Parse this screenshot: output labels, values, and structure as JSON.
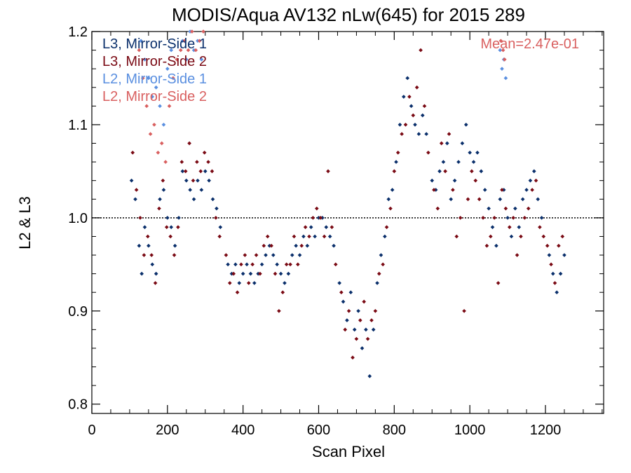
{
  "chart_data": {
    "type": "scatter",
    "title": "MODIS/Aqua AV132 nLw(645) for 2015 289",
    "xlabel": "Scan Pixel",
    "ylabel": "L2 & L3",
    "xlim": [
      0,
      1354
    ],
    "ylim": [
      0.79,
      1.2
    ],
    "xticks": [
      0,
      200,
      400,
      600,
      800,
      1000,
      1200
    ],
    "yticks": [
      0.8,
      0.9,
      1.0,
      1.1,
      1.2
    ],
    "xtick_labels": [
      "0",
      "200",
      "400",
      "600",
      "800",
      "1000",
      "1200"
    ],
    "ytick_labels": [
      "0.8",
      "0.9",
      "1.0",
      "1.1",
      "1.2"
    ],
    "reference_line": 1.0,
    "annotation": "Mean=2.47e-01",
    "annotation_color": "#d96060",
    "legend_position": "top-left",
    "series": [
      {
        "name": "L3, Mirror-Side 1",
        "color": "#0a2f6b",
        "points": [
          [
            105,
            1.04
          ],
          [
            115,
            1.02
          ],
          [
            125,
            0.97
          ],
          [
            132,
            0.94
          ],
          [
            140,
            0.99
          ],
          [
            150,
            0.97
          ],
          [
            160,
            0.95
          ],
          [
            170,
            0.94
          ],
          [
            180,
            1.02
          ],
          [
            190,
            1.03
          ],
          [
            200,
            1.0
          ],
          [
            210,
            0.99
          ],
          [
            220,
            0.97
          ],
          [
            230,
            1.0
          ],
          [
            240,
            1.05
          ],
          [
            250,
            1.04
          ],
          [
            260,
            1.03
          ],
          [
            270,
            1.02
          ],
          [
            280,
            1.04
          ],
          [
            290,
            1.03
          ],
          [
            300,
            1.05
          ],
          [
            310,
            1.04
          ],
          [
            320,
            1.02
          ],
          [
            330,
            1.01
          ],
          [
            340,
            0.99
          ],
          [
            360,
            0.95
          ],
          [
            370,
            0.94
          ],
          [
            380,
            0.95
          ],
          [
            390,
            0.93
          ],
          [
            400,
            0.94
          ],
          [
            410,
            0.95
          ],
          [
            420,
            0.94
          ],
          [
            430,
            0.93
          ],
          [
            440,
            0.94
          ],
          [
            450,
            0.95
          ],
          [
            460,
            0.96
          ],
          [
            470,
            0.97
          ],
          [
            480,
            0.96
          ],
          [
            490,
            0.95
          ],
          [
            500,
            0.94
          ],
          [
            510,
            0.93
          ],
          [
            520,
            0.94
          ],
          [
            530,
            0.96
          ],
          [
            540,
            0.97
          ],
          [
            550,
            0.96
          ],
          [
            560,
            0.98
          ],
          [
            570,
            0.97
          ],
          [
            580,
            0.99
          ],
          [
            590,
            0.98
          ],
          [
            600,
            1.0
          ],
          [
            610,
            1.0
          ],
          [
            620,
            0.99
          ],
          [
            630,
            0.98
          ],
          [
            640,
            0.97
          ],
          [
            655,
            0.93
          ],
          [
            665,
            0.91
          ],
          [
            675,
            0.89
          ],
          [
            685,
            0.92
          ],
          [
            695,
            0.88
          ],
          [
            705,
            0.9
          ],
          [
            715,
            0.86
          ],
          [
            725,
            0.88
          ],
          [
            735,
            0.83
          ],
          [
            745,
            0.88
          ],
          [
            755,
            0.93
          ],
          [
            765,
            0.96
          ],
          [
            775,
            0.98
          ],
          [
            785,
            1.02
          ],
          [
            795,
            1.03
          ],
          [
            805,
            1.06
          ],
          [
            815,
            1.1
          ],
          [
            825,
            1.13
          ],
          [
            835,
            1.15
          ],
          [
            845,
            1.12
          ],
          [
            855,
            1.1
          ],
          [
            865,
            1.09
          ],
          [
            875,
            1.11
          ],
          [
            885,
            1.09
          ],
          [
            900,
            1.04
          ],
          [
            910,
            1.03
          ],
          [
            920,
            1.05
          ],
          [
            930,
            1.06
          ],
          [
            940,
            1.08
          ],
          [
            950,
            1.02
          ],
          [
            960,
            1.04
          ],
          [
            970,
            1.06
          ],
          [
            980,
            1.08
          ],
          [
            990,
            1.1
          ],
          [
            1000,
            1.07
          ],
          [
            1010,
            1.06
          ],
          [
            1020,
            1.07
          ],
          [
            1030,
            1.05
          ],
          [
            1040,
            1.03
          ],
          [
            1050,
            1.01
          ],
          [
            1060,
            0.99
          ],
          [
            1070,
            0.97
          ],
          [
            1080,
            1.02
          ],
          [
            1090,
            1.03
          ],
          [
            1100,
            1.0
          ],
          [
            1110,
            0.98
          ],
          [
            1120,
            1.01
          ],
          [
            1130,
            0.99
          ],
          [
            1140,
            1.02
          ],
          [
            1150,
            1.03
          ],
          [
            1160,
            1.04
          ],
          [
            1170,
            1.05
          ],
          [
            1180,
            1.02
          ],
          [
            1190,
            1.0
          ],
          [
            1210,
            0.96
          ],
          [
            1220,
            0.94
          ],
          [
            1230,
            0.92
          ],
          [
            1240,
            0.94
          ],
          [
            1250,
            0.96
          ]
        ]
      },
      {
        "name": "L3, Mirror-Side 2",
        "color": "#7a0a14",
        "points": [
          [
            108,
            1.07
          ],
          [
            118,
            1.03
          ],
          [
            128,
            1.0
          ],
          [
            138,
            0.96
          ],
          [
            148,
            0.98
          ],
          [
            158,
            0.96
          ],
          [
            168,
            0.93
          ],
          [
            178,
            1.01
          ],
          [
            188,
            1.04
          ],
          [
            198,
            0.99
          ],
          [
            208,
            0.98
          ],
          [
            218,
            0.96
          ],
          [
            228,
            0.99
          ],
          [
            238,
            1.06
          ],
          [
            248,
            1.05
          ],
          [
            258,
            1.08
          ],
          [
            268,
            1.04
          ],
          [
            278,
            1.06
          ],
          [
            288,
            1.05
          ],
          [
            298,
            1.07
          ],
          [
            308,
            1.06
          ],
          [
            318,
            1.05
          ],
          [
            328,
            1.0
          ],
          [
            338,
            0.98
          ],
          [
            355,
            0.96
          ],
          [
            365,
            0.93
          ],
          [
            375,
            0.94
          ],
          [
            385,
            0.92
          ],
          [
            395,
            0.95
          ],
          [
            405,
            0.96
          ],
          [
            415,
            0.93
          ],
          [
            425,
            0.95
          ],
          [
            435,
            0.96
          ],
          [
            445,
            0.94
          ],
          [
            455,
            0.97
          ],
          [
            465,
            0.98
          ],
          [
            475,
            0.97
          ],
          [
            485,
            0.94
          ],
          [
            495,
            0.9
          ],
          [
            505,
            0.92
          ],
          [
            515,
            0.95
          ],
          [
            525,
            0.95
          ],
          [
            535,
            0.98
          ],
          [
            545,
            0.95
          ],
          [
            555,
            0.97
          ],
          [
            565,
            0.99
          ],
          [
            575,
            0.98
          ],
          [
            585,
            1.0
          ],
          [
            595,
            1.01
          ],
          [
            605,
            1.0
          ],
          [
            615,
            0.98
          ],
          [
            625,
            1.05
          ],
          [
            635,
            0.99
          ],
          [
            645,
            0.95
          ],
          [
            660,
            0.92
          ],
          [
            670,
            0.88
          ],
          [
            680,
            0.9
          ],
          [
            690,
            0.85
          ],
          [
            700,
            0.87
          ],
          [
            710,
            0.89
          ],
          [
            720,
            0.91
          ],
          [
            730,
            0.87
          ],
          [
            740,
            0.89
          ],
          [
            750,
            0.9
          ],
          [
            760,
            0.94
          ],
          [
            770,
            0.95
          ],
          [
            780,
            0.99
          ],
          [
            790,
            1.01
          ],
          [
            800,
            1.05
          ],
          [
            810,
            1.07
          ],
          [
            820,
            1.09
          ],
          [
            830,
            1.1
          ],
          [
            840,
            1.13
          ],
          [
            850,
            1.11
          ],
          [
            860,
            1.14
          ],
          [
            870,
            1.18
          ],
          [
            880,
            1.12
          ],
          [
            890,
            1.07
          ],
          [
            905,
            1.03
          ],
          [
            915,
            1.01
          ],
          [
            925,
            1.08
          ],
          [
            935,
            1.05
          ],
          [
            945,
            1.09
          ],
          [
            955,
            1.03
          ],
          [
            965,
            0.98
          ],
          [
            975,
            1.0
          ],
          [
            985,
            0.9
          ],
          [
            995,
            1.02
          ],
          [
            1005,
            1.05
          ],
          [
            1015,
            1.04
          ],
          [
            1025,
            1.02
          ],
          [
            1035,
            1.0
          ],
          [
            1045,
            0.97
          ],
          [
            1055,
            0.98
          ],
          [
            1065,
            1.0
          ],
          [
            1075,
            0.93
          ],
          [
            1085,
            1.03
          ],
          [
            1095,
            1.01
          ],
          [
            1105,
            0.99
          ],
          [
            1115,
            1.0
          ],
          [
            1125,
            0.96
          ],
          [
            1135,
            0.98
          ],
          [
            1145,
            1.0
          ],
          [
            1155,
            1.01
          ],
          [
            1165,
            1.03
          ],
          [
            1175,
            1.04
          ],
          [
            1185,
            0.99
          ],
          [
            1195,
            0.98
          ],
          [
            1205,
            0.97
          ],
          [
            1215,
            0.95
          ],
          [
            1225,
            0.93
          ],
          [
            1235,
            0.97
          ],
          [
            1245,
            0.98
          ]
        ]
      },
      {
        "name": "L2, Mirror-Side 1",
        "color": "#5a8fe0",
        "points": [
          [
            130,
            1.19
          ],
          [
            140,
            1.17
          ],
          [
            150,
            1.15
          ],
          [
            160,
            1.13
          ],
          [
            170,
            1.14
          ],
          [
            180,
            1.12
          ],
          [
            190,
            1.1
          ],
          [
            200,
            1.16
          ],
          [
            210,
            1.18
          ],
          [
            240,
            1.19
          ],
          [
            250,
            1.17
          ],
          [
            260,
            1.2
          ],
          [
            270,
            1.18
          ],
          [
            280,
            1.19
          ],
          [
            290,
            1.17
          ],
          [
            1080,
            1.18
          ],
          [
            1085,
            1.16
          ],
          [
            1090,
            1.17
          ],
          [
            1095,
            1.15
          ]
        ]
      },
      {
        "name": "L2, Mirror-Side 2",
        "color": "#d96060",
        "points": [
          [
            125,
            1.18
          ],
          [
            135,
            1.15
          ],
          [
            145,
            1.12
          ],
          [
            155,
            1.09
          ],
          [
            165,
            1.1
          ],
          [
            175,
            1.07
          ],
          [
            185,
            1.08
          ],
          [
            195,
            1.06
          ],
          [
            205,
            1.12
          ],
          [
            215,
            1.15
          ],
          [
            225,
            1.17
          ],
          [
            235,
            1.18
          ],
          [
            245,
            1.19
          ],
          [
            255,
            1.18
          ],
          [
            265,
            1.2
          ],
          [
            275,
            1.18
          ],
          [
            285,
            1.19
          ],
          [
            295,
            1.2
          ],
          [
            1082,
            1.19
          ],
          [
            1088,
            1.18
          ],
          [
            1092,
            1.17
          ]
        ]
      }
    ]
  }
}
